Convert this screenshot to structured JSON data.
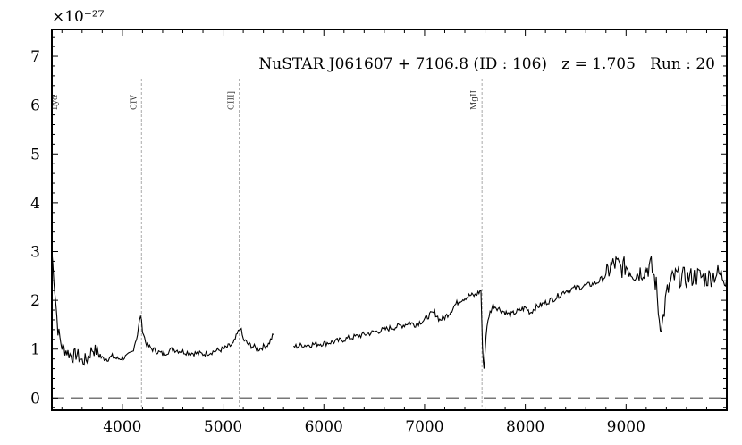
{
  "chart_data": {
    "type": "line",
    "title": "NuSTAR J061607 + 7106.8 (ID : 106)   z = 1.705   Run : 20",
    "offset_text": "×10⁻²⁷",
    "xlabel": "",
    "ylabel": "",
    "xlim": [
      3300,
      10000
    ],
    "ylim": [
      -0.25,
      7.55
    ],
    "x_ticks": [
      4000,
      5000,
      6000,
      7000,
      8000,
      9000
    ],
    "y_ticks": [
      0,
      1,
      2,
      3,
      4,
      5,
      6,
      7
    ],
    "grid": false,
    "zero_line": 0,
    "emission_lines": [
      {
        "label": "Lyα",
        "x": 3300
      },
      {
        "label": "CIV",
        "x": 4190
      },
      {
        "label": "CIII]",
        "x": 5160
      },
      {
        "label": "MgII",
        "x": 7570
      }
    ],
    "series": [
      {
        "segments": [
          {
            "x": [
              3300,
              3330,
              3360,
              3400,
              3450,
              3500,
              3550,
              3600,
              3650,
              3700,
              3750,
              3800,
              3850,
              3900,
              3950,
              4000,
              4050,
              4100,
              4150,
              4180,
              4200,
              4230,
              4260,
              4300,
              4350,
              4400,
              4500,
              4600,
              4700,
              4800,
              4900,
              5000,
              5050,
              5100,
              5150,
              5170,
              5200,
              5250,
              5300,
              5350,
              5400,
              5450,
              5500
            ],
            "y": [
              3.0,
              2.2,
              1.4,
              1.05,
              0.95,
              0.85,
              0.9,
              0.75,
              0.8,
              1.0,
              0.95,
              0.82,
              0.8,
              0.85,
              0.8,
              0.82,
              0.85,
              0.95,
              1.3,
              1.7,
              1.4,
              1.15,
              1.05,
              1.0,
              0.95,
              0.9,
              1.0,
              0.95,
              0.92,
              0.9,
              0.95,
              1.0,
              1.05,
              1.1,
              1.35,
              1.45,
              1.2,
              1.1,
              1.05,
              1.0,
              1.05,
              1.1,
              1.3
            ]
          },
          {
            "x": [
              5700,
              5800,
              5900,
              6000,
              6100,
              6200,
              6300,
              6400,
              6500,
              6600,
              6700,
              6800,
              6850,
              6900,
              6950,
              7000,
              7050,
              7100,
              7150,
              7200,
              7250,
              7300,
              7350,
              7400,
              7450,
              7500,
              7560,
              7575,
              7590,
              7610,
              7640,
              7680,
              7720,
              7760,
              7800,
              7850,
              7900,
              7950,
              8000,
              8050,
              8100,
              8150,
              8200,
              8300,
              8400,
              8500,
              8600,
              8700,
              8800,
              8850,
              8900,
              8950,
              9000,
              9050,
              9100,
              9150,
              9200,
              9250,
              9300,
              9330,
              9360,
              9400,
              9450,
              9500,
              9600,
              9700,
              9800,
              9900,
              10000
            ],
            "y": [
              1.05,
              1.08,
              1.1,
              1.12,
              1.15,
              1.2,
              1.25,
              1.3,
              1.35,
              1.4,
              1.45,
              1.5,
              1.55,
              1.5,
              1.55,
              1.6,
              1.7,
              1.75,
              1.6,
              1.65,
              1.75,
              1.9,
              2.0,
              2.05,
              2.1,
              2.1,
              2.2,
              1.0,
              0.6,
              1.3,
              1.7,
              1.9,
              1.85,
              1.8,
              1.75,
              1.7,
              1.75,
              1.8,
              1.85,
              1.75,
              1.85,
              1.9,
              1.95,
              2.05,
              2.2,
              2.25,
              2.3,
              2.35,
              2.5,
              2.7,
              2.75,
              2.65,
              2.7,
              2.6,
              2.55,
              2.6,
              2.65,
              2.7,
              2.3,
              1.6,
              1.5,
              2.1,
              2.4,
              2.5,
              2.45,
              2.5,
              2.45,
              2.55,
              2.45
            ]
          }
        ]
      }
    ]
  }
}
